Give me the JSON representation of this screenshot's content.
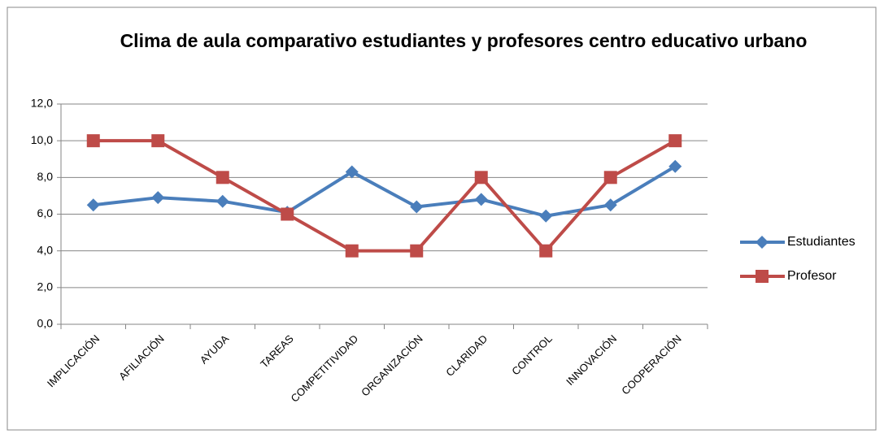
{
  "chart_data": {
    "type": "line",
    "title": "Clima de aula comparativo estudiantes y profesores centro educativo urbano",
    "categories": [
      "IMPLICACIÓN",
      "AFILIACIÓN",
      "AYUDA",
      "TAREAS",
      "COMPETITIVIDAD",
      "ORGANIZACIÓN",
      "CLARIDAD",
      "CONTROL",
      "INNOVACIÓN",
      "COOPERACIÓN"
    ],
    "series": [
      {
        "name": "Estudiantes",
        "color": "#4a7ebb",
        "marker": "diamond",
        "values": [
          6.5,
          6.9,
          6.7,
          6.1,
          8.3,
          6.4,
          6.8,
          5.9,
          6.5,
          8.6
        ]
      },
      {
        "name": "Profesor",
        "color": "#be4b48",
        "marker": "square",
        "values": [
          10,
          10,
          8,
          6,
          4,
          4,
          8,
          4,
          8,
          10
        ]
      }
    ],
    "ylim": [
      0,
      12
    ],
    "yticks": [
      {
        "value": 0,
        "label": "0,0"
      },
      {
        "value": 2,
        "label": "2,0"
      },
      {
        "value": 4,
        "label": "4,0"
      },
      {
        "value": 6,
        "label": "6,0"
      },
      {
        "value": 8,
        "label": "8,0"
      },
      {
        "value": 10,
        "label": "10,0"
      },
      {
        "value": 12,
        "label": "12,0"
      }
    ],
    "grid": true,
    "legend": "right"
  }
}
